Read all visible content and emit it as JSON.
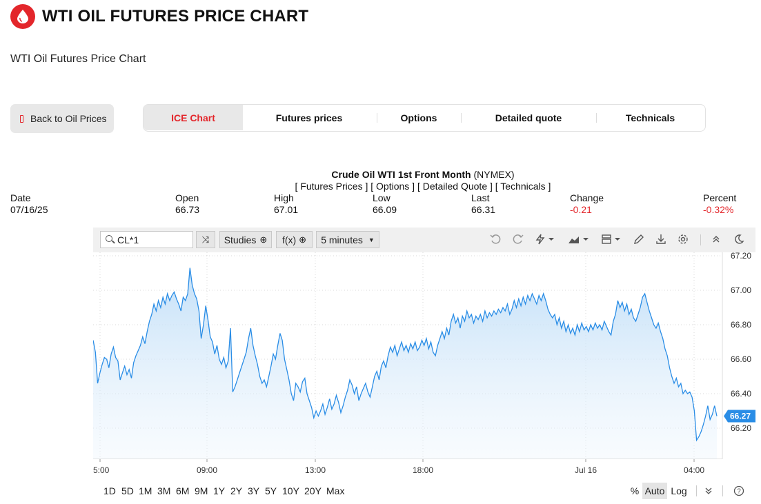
{
  "header": {
    "title": "WTI OIL FUTURES PRICE CHART",
    "subtitle": "WTI Oil Futures Price Chart",
    "brand_color": "#e3262b"
  },
  "back_button": {
    "label": "Back to Oil Prices"
  },
  "tabs": [
    {
      "label": "ICE Chart",
      "active": true
    },
    {
      "label": "Futures prices"
    },
    {
      "label": "Options"
    },
    {
      "label": "Detailed quote"
    },
    {
      "label": "Technicals"
    }
  ],
  "quote": {
    "title": "Crude Oil WTI 1st Front Month",
    "exchange": "(NYMEX)",
    "links": "[ Futures Prices ] [ Options ] [ Detailed Quote ] [ Technicals ]",
    "stats": [
      {
        "label": "Date",
        "value": "07/16/25"
      },
      {
        "label": "Open",
        "value": "66.73"
      },
      {
        "label": "High",
        "value": "67.01"
      },
      {
        "label": "Low",
        "value": "66.09"
      },
      {
        "label": "Last",
        "value": "66.31"
      },
      {
        "label": "Change",
        "value": "-0.21",
        "negative": true
      },
      {
        "label": "Percent",
        "value": "-0.32%",
        "negative": true
      }
    ]
  },
  "toolbar": {
    "symbol": "CL*1",
    "studies_label": "Studies",
    "fx_label": "f(x)",
    "interval_label": "5 minutes",
    "icons": [
      "undo-icon",
      "redo-icon",
      "lightning-icon",
      "mountain-chart-icon",
      "layout-icon",
      "pencil-icon",
      "download-icon",
      "gear-icon",
      "collapse-icon",
      "moon-icon"
    ]
  },
  "range_bar": {
    "ranges": [
      "1D",
      "5D",
      "1M",
      "3M",
      "6M",
      "9M",
      "1Y",
      "2Y",
      "3Y",
      "5Y",
      "10Y",
      "20Y",
      "Max"
    ],
    "percent_label": "%",
    "auto_label": "Auto",
    "log_label": "Log"
  },
  "chart_data": {
    "type": "area",
    "line_color": "#2a8de6",
    "y_ticks": [
      "67.20",
      "67.00",
      "66.80",
      "66.60",
      "66.40",
      "66.20"
    ],
    "ylim": [
      66.02,
      67.22
    ],
    "x_ticks": [
      "5:00",
      "09:00",
      "13:00",
      "18:00",
      "Jul 16",
      "04:00"
    ],
    "last_price_label": "66.27",
    "grid": true,
    "y_axis_side": "right",
    "series": [
      {
        "values": [
          66.71,
          66.64,
          66.46,
          66.52,
          66.57,
          66.61,
          66.6,
          66.55,
          66.63,
          66.67,
          66.61,
          66.59,
          66.48,
          66.52,
          66.56,
          66.51,
          66.54,
          66.49,
          66.58,
          66.62,
          66.65,
          66.68,
          66.73,
          66.69,
          66.76,
          66.82,
          66.86,
          66.92,
          66.88,
          66.94,
          66.9,
          66.96,
          66.92,
          66.98,
          66.94,
          66.97,
          66.99,
          66.95,
          66.92,
          66.88,
          66.96,
          66.94,
          66.98,
          67.13,
          67.03,
          66.98,
          66.95,
          66.88,
          66.72,
          66.8,
          66.91,
          66.83,
          66.73,
          66.7,
          66.63,
          66.68,
          66.6,
          66.57,
          66.61,
          66.55,
          66.59,
          66.78,
          66.41,
          66.44,
          66.48,
          66.52,
          66.56,
          66.6,
          66.64,
          66.72,
          66.78,
          66.68,
          66.62,
          66.57,
          66.5,
          66.46,
          66.48,
          66.44,
          66.5,
          66.56,
          66.63,
          66.6,
          66.68,
          66.75,
          66.71,
          66.6,
          66.54,
          66.48,
          66.4,
          66.36,
          66.46,
          66.44,
          66.41,
          66.47,
          66.49,
          66.4,
          66.36,
          66.32,
          66.26,
          66.3,
          66.27,
          66.3,
          66.34,
          66.28,
          66.32,
          66.37,
          66.31,
          66.34,
          66.39,
          66.35,
          66.29,
          66.33,
          66.38,
          66.42,
          66.48,
          66.45,
          66.4,
          66.44,
          66.36,
          66.4,
          66.43,
          66.46,
          66.41,
          66.38,
          66.44,
          66.5,
          66.53,
          66.48,
          66.56,
          66.59,
          66.55,
          66.62,
          66.67,
          66.64,
          66.68,
          66.62,
          66.66,
          66.7,
          66.65,
          66.68,
          66.64,
          66.69,
          66.66,
          66.7,
          66.65,
          66.67,
          66.71,
          66.68,
          66.72,
          66.66,
          66.7,
          66.64,
          66.62,
          66.68,
          66.72,
          66.76,
          66.72,
          66.78,
          66.74,
          66.82,
          66.86,
          66.81,
          66.84,
          66.78,
          66.85,
          66.82,
          66.88,
          66.84,
          66.86,
          66.81,
          66.85,
          66.83,
          66.86,
          66.82,
          66.88,
          66.84,
          66.87,
          66.85,
          66.88,
          66.86,
          66.89,
          66.87,
          66.9,
          66.88,
          66.92,
          66.86,
          66.89,
          66.94,
          66.9,
          66.95,
          66.91,
          66.96,
          66.92,
          66.97,
          66.94,
          66.98,
          66.95,
          66.92,
          66.97,
          66.94,
          66.98,
          66.94,
          66.89,
          66.86,
          66.84,
          66.86,
          66.8,
          66.84,
          66.78,
          66.82,
          66.76,
          66.8,
          66.75,
          66.78,
          66.74,
          66.8,
          66.76,
          66.81,
          66.77,
          66.79,
          66.76,
          66.8,
          66.77,
          66.81,
          66.78,
          66.8,
          66.77,
          66.82,
          66.79,
          66.76,
          66.74,
          66.82,
          66.86,
          66.94,
          66.9,
          66.93,
          66.88,
          66.92,
          66.86,
          66.89,
          66.84,
          66.82,
          66.86,
          66.9,
          66.96,
          66.98,
          66.93,
          66.88,
          66.84,
          66.8,
          66.78,
          66.81,
          66.76,
          66.72,
          66.66,
          66.62,
          66.55,
          66.5,
          66.46,
          66.49,
          66.44,
          66.46,
          66.4,
          66.42,
          66.4,
          66.41,
          66.38,
          66.3,
          66.13,
          66.15,
          66.18,
          66.22,
          66.27,
          66.33,
          66.25,
          66.28,
          66.33,
          66.27
        ]
      }
    ]
  }
}
